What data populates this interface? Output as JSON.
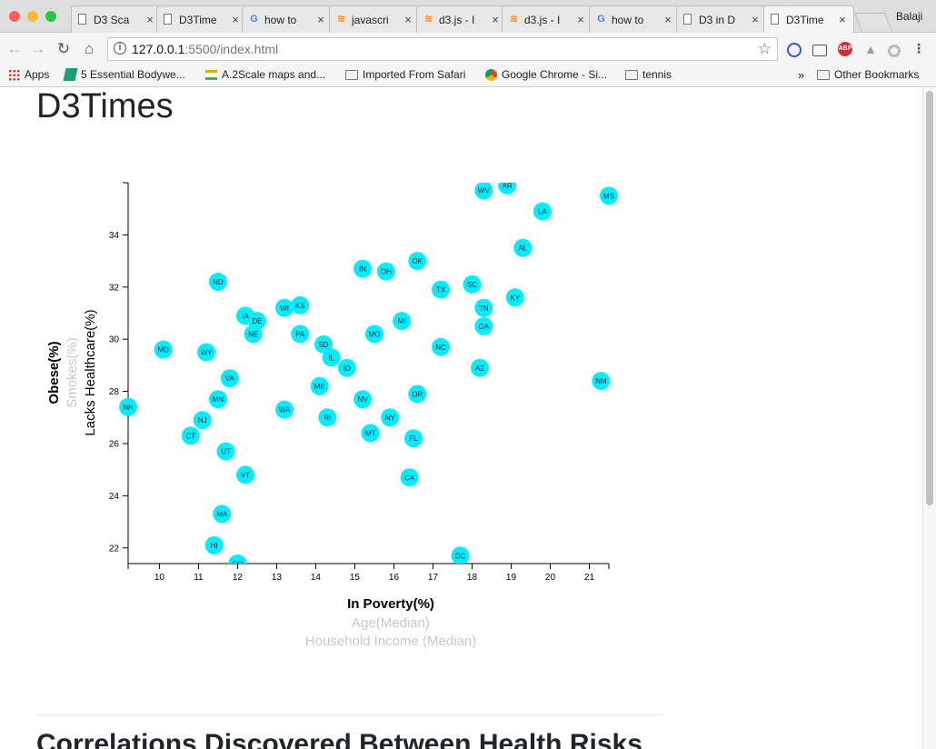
{
  "browser": {
    "tabs": [
      {
        "label": "D3 Sca",
        "icon": "doc"
      },
      {
        "label": "D3Time",
        "icon": "doc"
      },
      {
        "label": "how to",
        "icon": "google"
      },
      {
        "label": "javascri",
        "icon": "stackoverflow"
      },
      {
        "label": "d3.js - I",
        "icon": "stackoverflow"
      },
      {
        "label": "d3.js - I",
        "icon": "stackoverflow"
      },
      {
        "label": "how to",
        "icon": "google"
      },
      {
        "label": "D3 in D",
        "icon": "doc"
      },
      {
        "label": "D3Time",
        "icon": "doc",
        "active": true
      }
    ],
    "profile_name": "Balaji",
    "url_host": "127.0.0.1",
    "url_rest": ":5500/index.html",
    "bookmarks": [
      {
        "label": "Apps",
        "icon": "apps-grid-icon"
      },
      {
        "label": "5 Essential Bodywe...",
        "icon": "bookmark-logo-icon"
      },
      {
        "label": "A.2Scale maps and...",
        "icon": "bookmark-logo-icon"
      },
      {
        "label": "Imported From Safari",
        "icon": "folder-icon"
      },
      {
        "label": "Google Chrome - Si...",
        "icon": "chrome-icon"
      },
      {
        "label": "tennis",
        "icon": "folder-icon"
      }
    ],
    "other_bookmarks": "Other Bookmarks",
    "overflow": "»"
  },
  "page": {
    "title": "D3Times",
    "section_heading": "Correlations Discovered Between Health Risks"
  },
  "chart_data": {
    "type": "scatter",
    "xlim": [
      9.2,
      21.5
    ],
    "ylim": [
      21.4,
      36
    ],
    "xticks": [
      10,
      11,
      12,
      13,
      14,
      15,
      16,
      17,
      18,
      19,
      20,
      21
    ],
    "yticks": [
      22,
      24,
      26,
      28,
      30,
      32,
      34
    ],
    "x_labels": [
      {
        "text": "In Poverty(%)",
        "active": true
      },
      {
        "text": "Age(Median)",
        "active": false
      },
      {
        "text": "Household Income (Median)",
        "active": false
      }
    ],
    "y_labels": [
      {
        "text": "Obese(%)",
        "active": true,
        "bold": true
      },
      {
        "text": "Smokes(%)",
        "active": false,
        "bold": false
      },
      {
        "text": "Lacks Healthcare(%)",
        "active": true,
        "bold": false
      }
    ],
    "point_color": "#00eeff",
    "points": [
      {
        "abbr": "WV",
        "x": 18.3,
        "y": 35.7
      },
      {
        "abbr": "AR",
        "x": 18.9,
        "y": 35.9
      },
      {
        "abbr": "MS",
        "x": 21.5,
        "y": 35.5
      },
      {
        "abbr": "LA",
        "x": 19.8,
        "y": 34.9
      },
      {
        "abbr": "AL",
        "x": 19.3,
        "y": 33.5
      },
      {
        "abbr": "OK",
        "x": 16.6,
        "y": 33.0
      },
      {
        "abbr": "IN",
        "x": 15.2,
        "y": 32.7
      },
      {
        "abbr": "OH",
        "x": 15.8,
        "y": 32.6
      },
      {
        "abbr": "SC",
        "x": 18.0,
        "y": 32.1
      },
      {
        "abbr": "TX",
        "x": 17.2,
        "y": 31.9
      },
      {
        "abbr": "KY",
        "x": 19.1,
        "y": 31.6
      },
      {
        "abbr": "TN",
        "x": 18.3,
        "y": 31.2
      },
      {
        "abbr": "ND",
        "x": 11.5,
        "y": 32.2
      },
      {
        "abbr": "KS",
        "x": 13.6,
        "y": 31.3
      },
      {
        "abbr": "WI",
        "x": 13.2,
        "y": 31.2
      },
      {
        "abbr": "IA",
        "x": 12.2,
        "y": 30.9
      },
      {
        "abbr": "DE",
        "x": 12.5,
        "y": 30.7
      },
      {
        "abbr": "MI",
        "x": 16.2,
        "y": 30.7
      },
      {
        "abbr": "GA",
        "x": 18.3,
        "y": 30.5
      },
      {
        "abbr": "NE",
        "x": 12.4,
        "y": 30.2
      },
      {
        "abbr": "PA",
        "x": 13.6,
        "y": 30.2
      },
      {
        "abbr": "MO",
        "x": 15.5,
        "y": 30.2
      },
      {
        "abbr": "SD",
        "x": 14.2,
        "y": 29.8
      },
      {
        "abbr": "NC",
        "x": 17.2,
        "y": 29.7
      },
      {
        "abbr": "MD",
        "x": 10.1,
        "y": 29.6
      },
      {
        "abbr": "WY",
        "x": 11.2,
        "y": 29.5
      },
      {
        "abbr": "IL",
        "x": 14.4,
        "y": 29.3
      },
      {
        "abbr": "ID",
        "x": 14.8,
        "y": 28.9
      },
      {
        "abbr": "AZ",
        "x": 18.2,
        "y": 28.9
      },
      {
        "abbr": "VA",
        "x": 11.8,
        "y": 28.5
      },
      {
        "abbr": "ME",
        "x": 14.1,
        "y": 28.2
      },
      {
        "abbr": "NM",
        "x": 21.3,
        "y": 28.4
      },
      {
        "abbr": "OR",
        "x": 16.6,
        "y": 27.9
      },
      {
        "abbr": "MN",
        "x": 11.5,
        "y": 27.7
      },
      {
        "abbr": "NV",
        "x": 15.2,
        "y": 27.7
      },
      {
        "abbr": "NH",
        "x": 9.2,
        "y": 27.4
      },
      {
        "abbr": "WA",
        "x": 13.2,
        "y": 27.3
      },
      {
        "abbr": "RI",
        "x": 14.3,
        "y": 27.0
      },
      {
        "abbr": "NY",
        "x": 15.9,
        "y": 27.0
      },
      {
        "abbr": "NJ",
        "x": 11.1,
        "y": 26.9
      },
      {
        "abbr": "MT",
        "x": 15.4,
        "y": 26.4
      },
      {
        "abbr": "CT",
        "x": 10.8,
        "y": 26.3
      },
      {
        "abbr": "FL",
        "x": 16.5,
        "y": 26.2
      },
      {
        "abbr": "UT",
        "x": 11.7,
        "y": 25.7
      },
      {
        "abbr": "VT",
        "x": 12.2,
        "y": 24.8
      },
      {
        "abbr": "CA",
        "x": 16.4,
        "y": 24.7
      },
      {
        "abbr": "MA",
        "x": 11.6,
        "y": 23.3
      },
      {
        "abbr": "HI",
        "x": 11.4,
        "y": 22.1
      },
      {
        "abbr": "CO",
        "x": 12.0,
        "y": 21.4
      },
      {
        "abbr": "DC",
        "x": 17.7,
        "y": 21.7
      }
    ]
  }
}
